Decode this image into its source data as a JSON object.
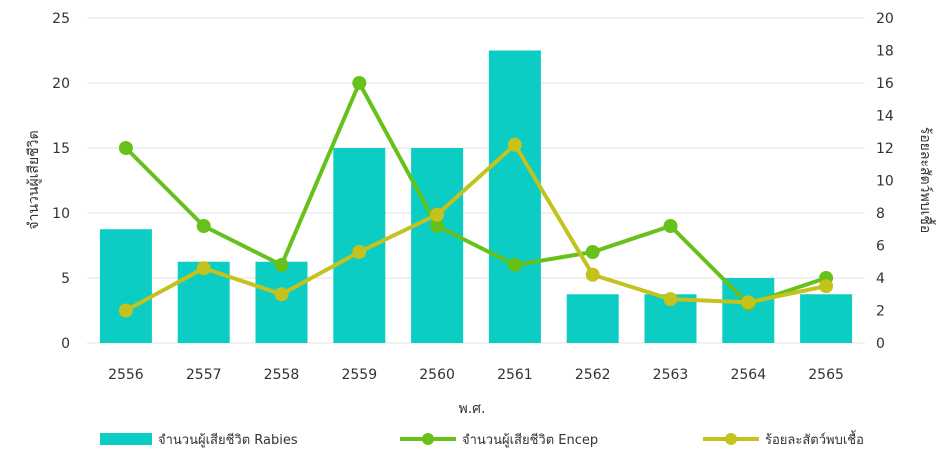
{
  "chart_data": {
    "type": "bar",
    "title": "",
    "xlabel": "พ.ศ.",
    "ylabel_left": "จำนวนผู้เสียชีวิต",
    "ylabel_right": "ร้อยละสัตว์พบเชื้อ",
    "categories": [
      "2556",
      "2557",
      "2558",
      "2559",
      "2560",
      "2561",
      "2562",
      "2563",
      "2564",
      "2565"
    ],
    "y_left": {
      "min": 0,
      "max": 25,
      "ticks": [
        0,
        5,
        10,
        15,
        20,
        25
      ]
    },
    "y_right": {
      "min": 0,
      "max": 20,
      "ticks": [
        0,
        2,
        4,
        6,
        8,
        10,
        12,
        14,
        16,
        18,
        20
      ]
    },
    "grid": true,
    "legend_position": "bottom",
    "series": [
      {
        "name": "จำนวนผู้เสียชีวิต Rabies",
        "kind": "bar",
        "axis": "left",
        "color": "#0ccdc3",
        "values": [
          8.75,
          6.25,
          6.25,
          15,
          15,
          22.5,
          3.75,
          3.75,
          5,
          3.75
        ]
      },
      {
        "name": "จำนวนผู้เสียชีวิต Encep",
        "kind": "line",
        "axis": "left",
        "color": "#66c21a",
        "values": [
          15,
          9,
          6,
          20,
          9,
          6,
          7,
          9,
          3,
          5
        ]
      },
      {
        "name": "ร้อยละสัตว์พบเชื้อ",
        "kind": "line",
        "axis": "right",
        "color": "#c4c21c",
        "values": [
          2.0,
          4.6,
          3.0,
          5.6,
          7.9,
          12.2,
          4.2,
          2.7,
          2.5,
          3.5
        ]
      }
    ]
  }
}
